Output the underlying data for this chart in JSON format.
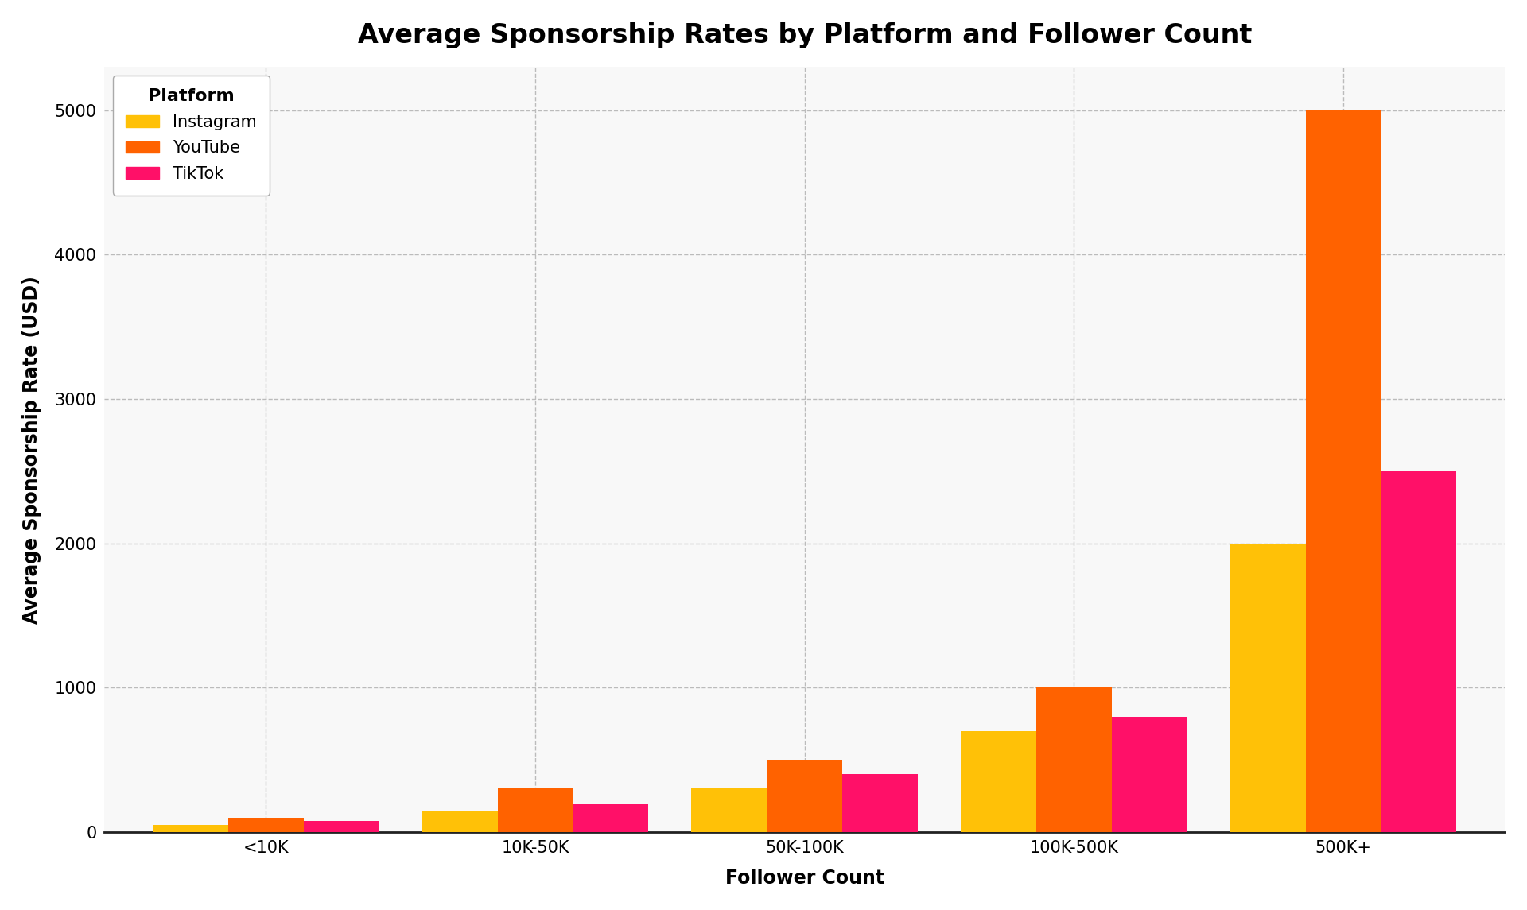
{
  "title": "Average Sponsorship Rates by Platform and Follower Count",
  "xlabel": "Follower Count",
  "ylabel": "Average Sponsorship Rate (USD)",
  "categories": [
    "<10K",
    "10K-50K",
    "50K-100K",
    "100K-500K",
    "500K+"
  ],
  "platforms": [
    "Instagram",
    "YouTube",
    "TikTok"
  ],
  "colors": [
    "#FFC107",
    "#FF6200",
    "#FF1068"
  ],
  "values": {
    "Instagram": [
      50,
      150,
      300,
      700,
      2000
    ],
    "YouTube": [
      100,
      300,
      500,
      1000,
      5000
    ],
    "TikTok": [
      75,
      200,
      400,
      800,
      2500
    ]
  },
  "ylim": [
    0,
    5300
  ],
  "yticks": [
    0,
    1000,
    2000,
    3000,
    4000,
    5000
  ],
  "bar_width": 0.28,
  "legend_title": "Platform",
  "background_color": "#ffffff",
  "plot_bg_color": "#f8f8f8",
  "grid_color": "#bbbbbb",
  "title_fontsize": 24,
  "label_fontsize": 17,
  "tick_fontsize": 15,
  "legend_fontsize": 15
}
